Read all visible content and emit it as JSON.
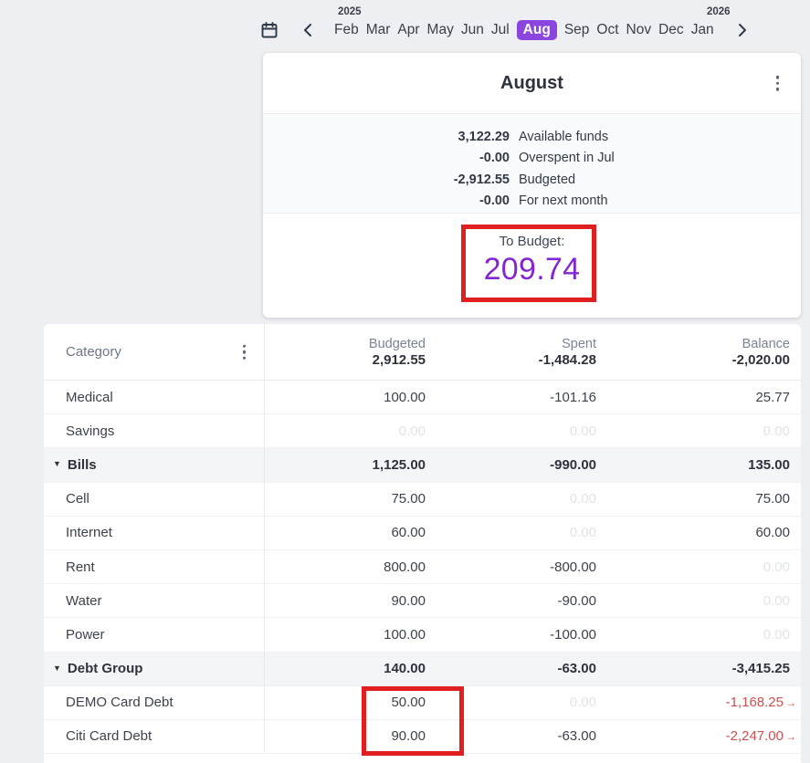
{
  "nav": {
    "left_year": "2025",
    "right_year": "2026",
    "months": [
      "Feb",
      "Mar",
      "Apr",
      "May",
      "Jun",
      "Jul",
      "Aug",
      "Sep",
      "Oct",
      "Nov",
      "Dec",
      "Jan"
    ],
    "selected_month": "Aug"
  },
  "month_card": {
    "title": "August",
    "summary": [
      {
        "value": "3,122.29",
        "label": "Available funds"
      },
      {
        "value": "-0.00",
        "label": "Overspent in Jul"
      },
      {
        "value": "-2,912.55",
        "label": "Budgeted"
      },
      {
        "value": "-0.00",
        "label": "For next month"
      }
    ],
    "to_budget_label": "To Budget:",
    "to_budget_value": "209.74"
  },
  "table": {
    "category_header": "Category",
    "columns": [
      {
        "label": "Budgeted",
        "total": "2,912.55"
      },
      {
        "label": "Spent",
        "total": "-1,484.28"
      },
      {
        "label": "Balance",
        "total": "-2,020.00"
      }
    ],
    "rows": [
      {
        "name": "Medical",
        "group": false,
        "budgeted": "100.00",
        "spent": "-101.16",
        "balance": "25.77",
        "muted": [],
        "balance_negative": false
      },
      {
        "name": "Savings",
        "group": false,
        "budgeted": "0.00",
        "spent": "0.00",
        "balance": "0.00",
        "muted": [
          "budgeted",
          "spent",
          "balance"
        ],
        "balance_negative": false
      },
      {
        "name": "Bills",
        "group": true,
        "budgeted": "1,125.00",
        "spent": "-990.00",
        "balance": "135.00",
        "muted": [],
        "balance_negative": false
      },
      {
        "name": "Cell",
        "group": false,
        "budgeted": "75.00",
        "spent": "0.00",
        "balance": "75.00",
        "muted": [
          "spent"
        ],
        "balance_negative": false
      },
      {
        "name": "Internet",
        "group": false,
        "budgeted": "60.00",
        "spent": "0.00",
        "balance": "60.00",
        "muted": [
          "spent"
        ],
        "balance_negative": false
      },
      {
        "name": "Rent",
        "group": false,
        "budgeted": "800.00",
        "spent": "-800.00",
        "balance": "0.00",
        "muted": [
          "balance"
        ],
        "balance_negative": false
      },
      {
        "name": "Water",
        "group": false,
        "budgeted": "90.00",
        "spent": "-90.00",
        "balance": "0.00",
        "muted": [
          "balance"
        ],
        "balance_negative": false
      },
      {
        "name": "Power",
        "group": false,
        "budgeted": "100.00",
        "spent": "-100.00",
        "balance": "0.00",
        "muted": [
          "balance"
        ],
        "balance_negative": false
      },
      {
        "name": "Debt Group",
        "group": true,
        "budgeted": "140.00",
        "spent": "-63.00",
        "balance": "-3,415.25",
        "muted": [],
        "balance_negative": false
      },
      {
        "name": "DEMO Card Debt",
        "group": false,
        "budgeted": "50.00",
        "spent": "0.00",
        "balance": "-1,168.25",
        "muted": [
          "spent"
        ],
        "balance_negative": true,
        "balance_arrow": "→"
      },
      {
        "name": "Citi Card Debt",
        "group": false,
        "budgeted": "90.00",
        "spent": "-63.00",
        "balance": "-2,247.00",
        "muted": [],
        "balance_negative": true,
        "balance_arrow": "→"
      }
    ]
  },
  "colors": {
    "accent_purple": "#8b46e0",
    "to_budget_purple": "#8226d3",
    "negative_red": "#d04f4f",
    "muted_gray": "#e1e4e9",
    "annotation_red": "#e02020"
  }
}
